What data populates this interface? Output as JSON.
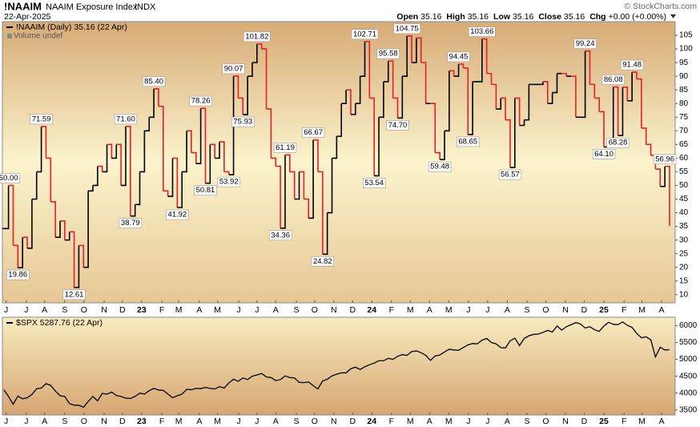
{
  "header": {
    "symbol": "!NAAIM",
    "name": "NAAIM Exposure Index",
    "exchange": "INDX",
    "source": "© StockCharts.com",
    "date": "22-Apr-2025",
    "quote": [
      {
        "label": "Open",
        "value": 35.16
      },
      {
        "label": "High",
        "value": 35.16
      },
      {
        "label": "Low",
        "value": 35.16
      },
      {
        "label": "Close",
        "value": 35.16
      },
      {
        "label": "Chg",
        "value": "+0.00 (+0.00%)"
      }
    ]
  },
  "chart_data": [
    {
      "type": "line",
      "step": true,
      "background": [
        "#d7ab76",
        "#fbf3cc",
        "#e6c794"
      ],
      "annotations": [
        "Volume undef"
      ],
      "series": [
        {
          "name": "!NAAIM (Daily) 35.16 (22 Apr)",
          "up_color": "#000000",
          "down_color": "#e0202a",
          "values": [
            34.2,
            50,
            28,
            19.86,
            31,
            27,
            45,
            55,
            71.59,
            60,
            44,
            31,
            37,
            30,
            33,
            12.61,
            28,
            20,
            48,
            50,
            57,
            55,
            65,
            60,
            65,
            50,
            71.6,
            38.79,
            43,
            55,
            70,
            75,
            85.4,
            79,
            48,
            46,
            60,
            41.92,
            55,
            70,
            62,
            58,
            78.26,
            50.81,
            65,
            60,
            66,
            55,
            53.92,
            90.07,
            82,
            75.93,
            90,
            95,
            101.82,
            100,
            78,
            60,
            57,
            34.36,
            61.19,
            55,
            45,
            55,
            45,
            38,
            66.67,
            55,
            24.82,
            40,
            60,
            68,
            80,
            85,
            76,
            80,
            90,
            102.71,
            82,
            53.54,
            75,
            88,
            95.58,
            82,
            74.7,
            90,
            104.75,
            95,
            104,
            95,
            80,
            80,
            62,
            59.48,
            70,
            92,
            90,
            94.45,
            93,
            68.65,
            88,
            88,
            103.66,
            91,
            87,
            78,
            82,
            74,
            56.57,
            82,
            72,
            74,
            87,
            87,
            87,
            88,
            80,
            84,
            91,
            91,
            90,
            90,
            75,
            75,
            99.24,
            87,
            82,
            77,
            64.1,
            66,
            86.08,
            68.28,
            86,
            81,
            91.48,
            89,
            71,
            65,
            61,
            56,
            49.64,
            56.96,
            35.16
          ],
          "value_labels": [
            null,
            "50.00",
            null,
            "19.86",
            null,
            null,
            null,
            null,
            "71.59",
            null,
            null,
            null,
            null,
            null,
            null,
            "12.61",
            null,
            null,
            null,
            null,
            null,
            null,
            null,
            null,
            null,
            null,
            "71.60",
            "38.79",
            null,
            null,
            null,
            null,
            "85.40",
            null,
            null,
            null,
            null,
            "41.92",
            null,
            null,
            null,
            null,
            "78.26",
            "50.81",
            null,
            null,
            null,
            null,
            "53.92",
            "90.07",
            null,
            "75.93",
            null,
            null,
            "101.82",
            null,
            null,
            null,
            null,
            "34.36",
            "61.19",
            null,
            null,
            null,
            null,
            null,
            "66.67",
            null,
            "24.82",
            null,
            null,
            null,
            null,
            null,
            null,
            null,
            null,
            "102.71",
            null,
            "53.54",
            null,
            null,
            "95.58",
            null,
            "74.70",
            null,
            "104.75",
            null,
            null,
            null,
            null,
            null,
            null,
            "59.48",
            null,
            null,
            null,
            "94.45",
            null,
            "68.65",
            null,
            null,
            "103.66",
            null,
            null,
            null,
            null,
            null,
            "56.57",
            null,
            null,
            null,
            null,
            null,
            null,
            null,
            null,
            null,
            null,
            null,
            null,
            null,
            null,
            null,
            "99.24",
            null,
            null,
            null,
            "64.10",
            null,
            "86.08",
            "68.28",
            null,
            null,
            "91.48",
            null,
            null,
            null,
            null,
            null,
            null,
            "56.96",
            null
          ]
        }
      ],
      "xlim": [
        -0.3,
        143.2
      ],
      "ylim": [
        7,
        110
      ],
      "yticks": [
        10,
        15,
        20,
        25,
        30,
        35,
        40,
        45,
        50,
        55,
        60,
        65,
        70,
        75,
        80,
        85,
        90,
        95,
        100,
        105
      ],
      "xticks": [
        {
          "value": 0.5,
          "label": "J"
        },
        {
          "value": 4.8,
          "label": "J"
        },
        {
          "value": 8.7,
          "label": "A"
        },
        {
          "value": 13,
          "label": "S"
        },
        {
          "value": 17.1,
          "label": "O"
        },
        {
          "value": 21.4,
          "label": "N"
        },
        {
          "value": 25.3,
          "label": "D"
        },
        {
          "value": 29.4,
          "label": "23"
        },
        {
          "value": 33.7,
          "label": "F"
        },
        {
          "value": 37.3,
          "label": "M"
        },
        {
          "value": 41.7,
          "label": "A"
        },
        {
          "value": 45.6,
          "label": "M"
        },
        {
          "value": 50.1,
          "label": "J"
        },
        {
          "value": 54,
          "label": "J"
        },
        {
          "value": 58,
          "label": "A"
        },
        {
          "value": 62.4,
          "label": "S"
        },
        {
          "value": 66.3,
          "label": "O"
        },
        {
          "value": 70.4,
          "label": "N"
        },
        {
          "value": 74.4,
          "label": "D"
        },
        {
          "value": 78.5,
          "label": "24"
        },
        {
          "value": 82.7,
          "label": "F"
        },
        {
          "value": 86.7,
          "label": "M"
        },
        {
          "value": 90.8,
          "label": "A"
        },
        {
          "value": 94.9,
          "label": "M"
        },
        {
          "value": 99.1,
          "label": "J"
        },
        {
          "value": 103.2,
          "label": "J"
        },
        {
          "value": 107.4,
          "label": "A"
        },
        {
          "value": 111.6,
          "label": "S"
        },
        {
          "value": 115.6,
          "label": "O"
        },
        {
          "value": 119.8,
          "label": "N"
        },
        {
          "value": 123.8,
          "label": "D"
        },
        {
          "value": 128,
          "label": "25"
        },
        {
          "value": 132.3,
          "label": "F"
        },
        {
          "value": 136.1,
          "label": "M"
        },
        {
          "value": 140.3,
          "label": "A"
        }
      ]
    },
    {
      "type": "line",
      "background": [
        "#f8ebbf",
        "#d6a672"
      ],
      "series": [
        {
          "name": "$SPX 5287.76 (22 Apr)",
          "color": "#000000",
          "values": [
            4100,
            3900,
            3670,
            3910,
            3830,
            3860,
            3960,
            4130,
            4150,
            4280,
            4230,
            4060,
            3920,
            3900,
            3690,
            3640,
            3640,
            3580,
            3750,
            3900,
            3770,
            3990,
            3970,
            4030,
            3930,
            3900,
            3850,
            3840,
            3900,
            3999,
            3970,
            4070,
            4140,
            4090,
            4080,
            3970,
            3860,
            3920,
            3970,
            4110,
            4100,
            4140,
            4130,
            4170,
            4140,
            4120,
            4190,
            4150,
            4300,
            4410,
            4350,
            4450,
            4400,
            4500,
            4540,
            4580,
            4480,
            4460,
            4370,
            4400,
            4510,
            4460,
            4450,
            4320,
            4310,
            4330,
            4220,
            4120,
            4360,
            4410,
            4510,
            4560,
            4600,
            4600,
            4720,
            4770,
            4700,
            4780,
            4840,
            4890,
            4960,
            4960,
            5030,
            5000,
            5090,
            5140,
            5120,
            5230,
            5250,
            5200,
            5120,
            4970,
            5100,
            5130,
            5220,
            5300,
            5280,
            5270,
            5350,
            5430,
            5470,
            5460,
            5570,
            5620,
            5500,
            5460,
            5350,
            5340,
            5550,
            5630,
            5410,
            5620,
            5700,
            5740,
            5750,
            5800,
            5860,
            5810,
            5990,
            5870,
            5970,
            6030,
            6090,
            6050,
            5930,
            5970,
            5880,
            5830,
            5990,
            6100,
            6040,
            6030,
            6110,
            6010,
            5950,
            5770,
            5640,
            5670,
            5580,
            5070,
            5360,
            5280,
            5287.76
          ]
        }
      ],
      "xlim": [
        -0.3,
        143.2
      ],
      "ylim": [
        3350,
        6250
      ],
      "yticks": [
        3500,
        4000,
        4500,
        5000,
        5500,
        6000
      ],
      "xticks": [
        {
          "value": 0.5,
          "label": "J"
        },
        {
          "value": 4.8,
          "label": "J"
        },
        {
          "value": 8.7,
          "label": "A"
        },
        {
          "value": 13,
          "label": "S"
        },
        {
          "value": 17.1,
          "label": "O"
        },
        {
          "value": 21.4,
          "label": "N"
        },
        {
          "value": 25.3,
          "label": "D"
        },
        {
          "value": 29.4,
          "label": "23"
        },
        {
          "value": 33.7,
          "label": "F"
        },
        {
          "value": 37.3,
          "label": "M"
        },
        {
          "value": 41.7,
          "label": "A"
        },
        {
          "value": 45.6,
          "label": "M"
        },
        {
          "value": 50.1,
          "label": "J"
        },
        {
          "value": 54,
          "label": "J"
        },
        {
          "value": 58,
          "label": "A"
        },
        {
          "value": 62.4,
          "label": "S"
        },
        {
          "value": 66.3,
          "label": "O"
        },
        {
          "value": 70.4,
          "label": "N"
        },
        {
          "value": 74.4,
          "label": "D"
        },
        {
          "value": 78.5,
          "label": "24"
        },
        {
          "value": 82.7,
          "label": "F"
        },
        {
          "value": 86.7,
          "label": "M"
        },
        {
          "value": 90.8,
          "label": "A"
        },
        {
          "value": 94.9,
          "label": "M"
        },
        {
          "value": 99.1,
          "label": "J"
        },
        {
          "value": 103.2,
          "label": "J"
        },
        {
          "value": 107.4,
          "label": "A"
        },
        {
          "value": 111.6,
          "label": "S"
        },
        {
          "value": 115.6,
          "label": "O"
        },
        {
          "value": 119.8,
          "label": "N"
        },
        {
          "value": 123.8,
          "label": "D"
        },
        {
          "value": 128,
          "label": "25"
        },
        {
          "value": 132.3,
          "label": "F"
        },
        {
          "value": 136.1,
          "label": "M"
        },
        {
          "value": 140.3,
          "label": "A"
        }
      ]
    }
  ]
}
